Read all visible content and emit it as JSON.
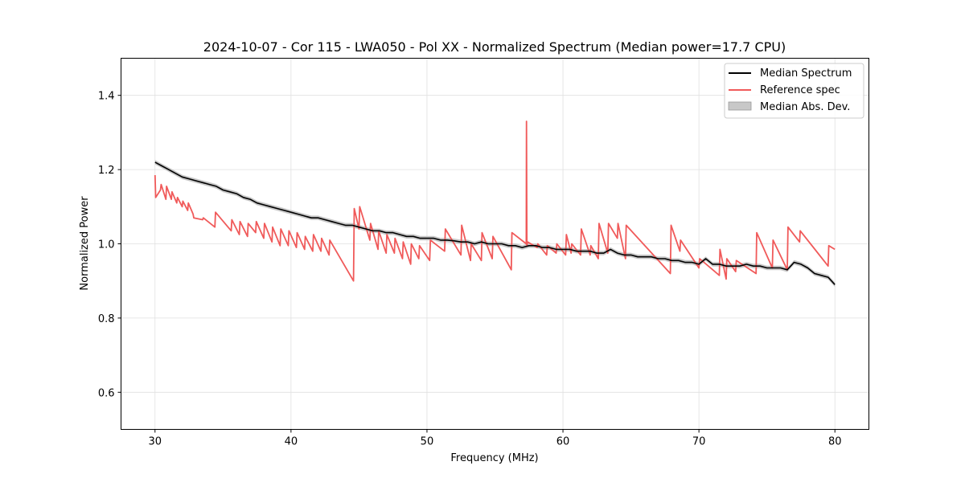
{
  "chart_data": {
    "type": "line",
    "title": "2024-10-07 - Cor 115 - LWA050 - Pol XX - Normalized Spectrum (Median power=17.7 CPU)",
    "xlabel": "Frequency (MHz)",
    "ylabel": "Normalized Power",
    "xlim": [
      27.5,
      82.5
    ],
    "ylim": [
      0.5,
      1.5
    ],
    "xticks": [
      30,
      40,
      50,
      60,
      70,
      80
    ],
    "yticks": [
      0.6,
      0.8,
      1.0,
      1.2,
      1.4
    ],
    "xtick_labels": [
      "30",
      "40",
      "50",
      "60",
      "70",
      "80"
    ],
    "ytick_labels": [
      "0.6",
      "0.8",
      "1.0",
      "1.2",
      "1.4"
    ],
    "grid": true,
    "legend_position": "top-right",
    "legend": [
      "Median Spectrum",
      "Reference spec",
      "Median Abs. Dev."
    ],
    "series": [
      {
        "name": "Median Spectrum",
        "color": "#000000",
        "x": [
          30.0,
          30.5,
          31.0,
          31.5,
          32.0,
          32.5,
          33.0,
          33.5,
          34.0,
          34.5,
          35.0,
          35.5,
          36.0,
          36.5,
          37.0,
          37.5,
          38.0,
          38.5,
          39.0,
          39.5,
          40.0,
          40.5,
          41.0,
          41.5,
          42.0,
          42.5,
          43.0,
          43.5,
          44.0,
          44.5,
          45.0,
          45.5,
          46.0,
          46.5,
          47.0,
          47.5,
          48.0,
          48.5,
          49.0,
          49.5,
          50.0,
          50.5,
          51.0,
          51.5,
          52.0,
          52.5,
          53.0,
          53.5,
          54.0,
          54.5,
          55.0,
          55.5,
          56.0,
          56.5,
          57.0,
          57.5,
          58.0,
          58.5,
          59.0,
          59.5,
          60.0,
          60.5,
          61.0,
          61.5,
          62.0,
          62.5,
          63.0,
          63.5,
          64.0,
          64.5,
          65.0,
          65.5,
          66.0,
          66.5,
          67.0,
          67.5,
          68.0,
          68.5,
          69.0,
          69.5,
          70.0,
          70.5,
          71.0,
          71.5,
          72.0,
          72.5,
          73.0,
          73.5,
          74.0,
          74.5,
          75.0,
          75.5,
          76.0,
          76.5,
          77.0,
          77.5,
          78.0,
          78.5,
          79.0,
          79.5,
          80.0
        ],
        "values": [
          1.22,
          1.21,
          1.2,
          1.19,
          1.18,
          1.175,
          1.17,
          1.165,
          1.16,
          1.155,
          1.145,
          1.14,
          1.135,
          1.125,
          1.12,
          1.11,
          1.105,
          1.1,
          1.095,
          1.09,
          1.085,
          1.08,
          1.075,
          1.07,
          1.07,
          1.065,
          1.06,
          1.055,
          1.05,
          1.05,
          1.045,
          1.04,
          1.035,
          1.035,
          1.03,
          1.03,
          1.025,
          1.02,
          1.02,
          1.015,
          1.015,
          1.015,
          1.01,
          1.01,
          1.008,
          1.005,
          1.005,
          1.0,
          1.005,
          1.0,
          1.0,
          1.0,
          0.995,
          0.995,
          0.99,
          0.995,
          0.995,
          0.99,
          0.99,
          0.985,
          0.985,
          0.985,
          0.98,
          0.98,
          0.98,
          0.975,
          0.975,
          0.985,
          0.975,
          0.97,
          0.97,
          0.965,
          0.965,
          0.965,
          0.96,
          0.96,
          0.955,
          0.955,
          0.95,
          0.95,
          0.945,
          0.96,
          0.945,
          0.945,
          0.94,
          0.94,
          0.94,
          0.945,
          0.94,
          0.94,
          0.935,
          0.935,
          0.935,
          0.93,
          0.95,
          0.945,
          0.935,
          0.92,
          0.915,
          0.91,
          0.89
        ]
      },
      {
        "name": "Reference spec",
        "color": "#f05a5a",
        "x": [
          30.0,
          30.05,
          30.4,
          30.45,
          30.8,
          30.85,
          31.2,
          31.25,
          31.6,
          31.65,
          32.0,
          32.05,
          32.4,
          32.45,
          32.8,
          32.85,
          33.5,
          33.55,
          34.4,
          34.45,
          35.6,
          35.65,
          36.2,
          36.25,
          36.8,
          36.85,
          37.4,
          37.45,
          38.0,
          38.05,
          38.6,
          38.65,
          39.2,
          39.25,
          39.8,
          39.85,
          40.4,
          40.45,
          41.0,
          41.05,
          41.6,
          41.65,
          42.2,
          42.25,
          42.8,
          42.85,
          44.6,
          44.65,
          45.0,
          45.05,
          45.8,
          45.85,
          46.4,
          46.45,
          47.0,
          47.05,
          47.6,
          47.65,
          48.2,
          48.25,
          48.8,
          48.85,
          49.4,
          49.45,
          50.2,
          50.25,
          51.3,
          51.35,
          52.5,
          52.55,
          53.2,
          53.25,
          54.0,
          54.05,
          54.8,
          54.85,
          56.2,
          56.25,
          57.3,
          57.32,
          57.35,
          57.4,
          58.1,
          58.15,
          58.8,
          58.85,
          59.5,
          59.55,
          60.2,
          60.25,
          60.6,
          60.65,
          61.3,
          61.35,
          62.0,
          62.05,
          62.6,
          62.65,
          63.3,
          63.35,
          64.0,
          64.05,
          64.6,
          64.65,
          67.9,
          67.95,
          68.6,
          68.65,
          70.0,
          70.05,
          71.5,
          71.55,
          72.0,
          72.05,
          72.7,
          72.75,
          74.2,
          74.25,
          75.4,
          75.45,
          76.5,
          76.55,
          77.4,
          77.45,
          79.5,
          79.55,
          80.0
        ],
        "values": [
          1.185,
          1.125,
          1.145,
          1.16,
          1.12,
          1.155,
          1.12,
          1.14,
          1.11,
          1.125,
          1.1,
          1.115,
          1.09,
          1.11,
          1.08,
          1.07,
          1.065,
          1.07,
          1.045,
          1.085,
          1.035,
          1.065,
          1.025,
          1.06,
          1.02,
          1.055,
          1.03,
          1.06,
          1.015,
          1.055,
          1.005,
          1.045,
          0.995,
          1.04,
          0.995,
          1.035,
          0.99,
          1.03,
          0.985,
          1.02,
          0.98,
          1.025,
          0.98,
          1.015,
          0.97,
          1.01,
          0.9,
          1.095,
          1.04,
          1.1,
          1.01,
          1.055,
          0.985,
          1.035,
          0.975,
          1.025,
          0.975,
          1.015,
          0.96,
          1.005,
          0.945,
          1.0,
          0.96,
          0.995,
          0.955,
          1.01,
          0.98,
          1.04,
          0.97,
          1.05,
          0.955,
          1.0,
          0.955,
          1.03,
          0.96,
          1.02,
          0.93,
          1.03,
          1.0,
          1.33,
          0.995,
          1.005,
          0.99,
          1.0,
          0.97,
          0.995,
          0.975,
          1.0,
          0.97,
          1.025,
          0.975,
          1.0,
          0.97,
          1.04,
          0.97,
          0.995,
          0.96,
          1.055,
          0.975,
          1.055,
          1.015,
          1.055,
          0.96,
          1.05,
          0.92,
          1.05,
          0.98,
          1.01,
          0.935,
          0.96,
          0.915,
          0.985,
          0.905,
          0.96,
          0.925,
          0.955,
          0.92,
          1.03,
          0.935,
          1.01,
          0.93,
          1.045,
          1.005,
          1.035,
          0.94,
          0.995,
          0.985
        ]
      }
    ],
    "band": {
      "name": "Median Abs. Dev.",
      "fill": "#c8c8c8",
      "series_ref": "Median Spectrum",
      "half_width": 0.006
    }
  }
}
